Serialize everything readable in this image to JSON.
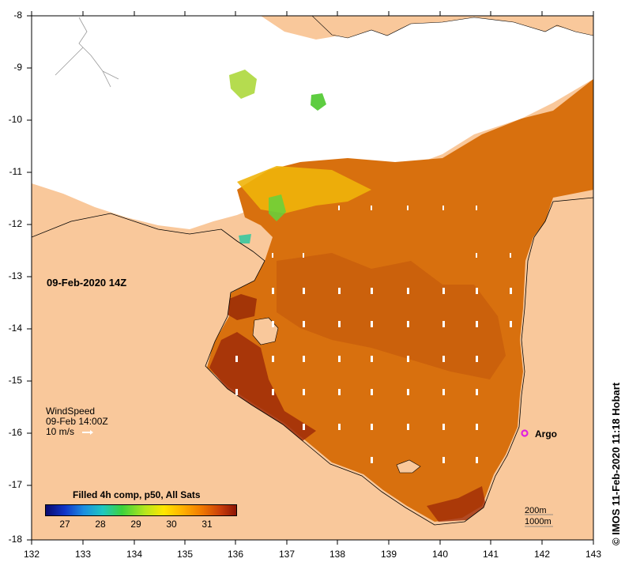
{
  "map": {
    "longitudes": [
      "132",
      "133",
      "134",
      "135",
      "136",
      "137",
      "138",
      "139",
      "140",
      "141",
      "142",
      "143"
    ],
    "latitudes": [
      "-8",
      "-9",
      "-10",
      "-11",
      "-12",
      "-13",
      "-14",
      "-15",
      "-16",
      "-17",
      "-18"
    ],
    "datetime_label": "09-Feb-2020 14Z",
    "wind": {
      "title": "WindSpeed",
      "time": "09-Feb 14:00Z",
      "scale_label": "10 m/s"
    },
    "argo_label": "Argo",
    "colorbar": {
      "title": "Filled 4h comp, p50, All Sats",
      "ticks": [
        "27",
        "28",
        "29",
        "30",
        "31"
      ]
    },
    "isobaths": [
      "200m",
      "1000m"
    ],
    "credit": "IMOS 11-Feb-2020 11:18 Hobart",
    "credit_symbol": "©",
    "colors": {
      "land": "#f9c89b",
      "cloud": "#ffffff",
      "sst_warm": "#d8700e",
      "sst_hot": "#a02c08",
      "argo": "#e020e0"
    }
  }
}
